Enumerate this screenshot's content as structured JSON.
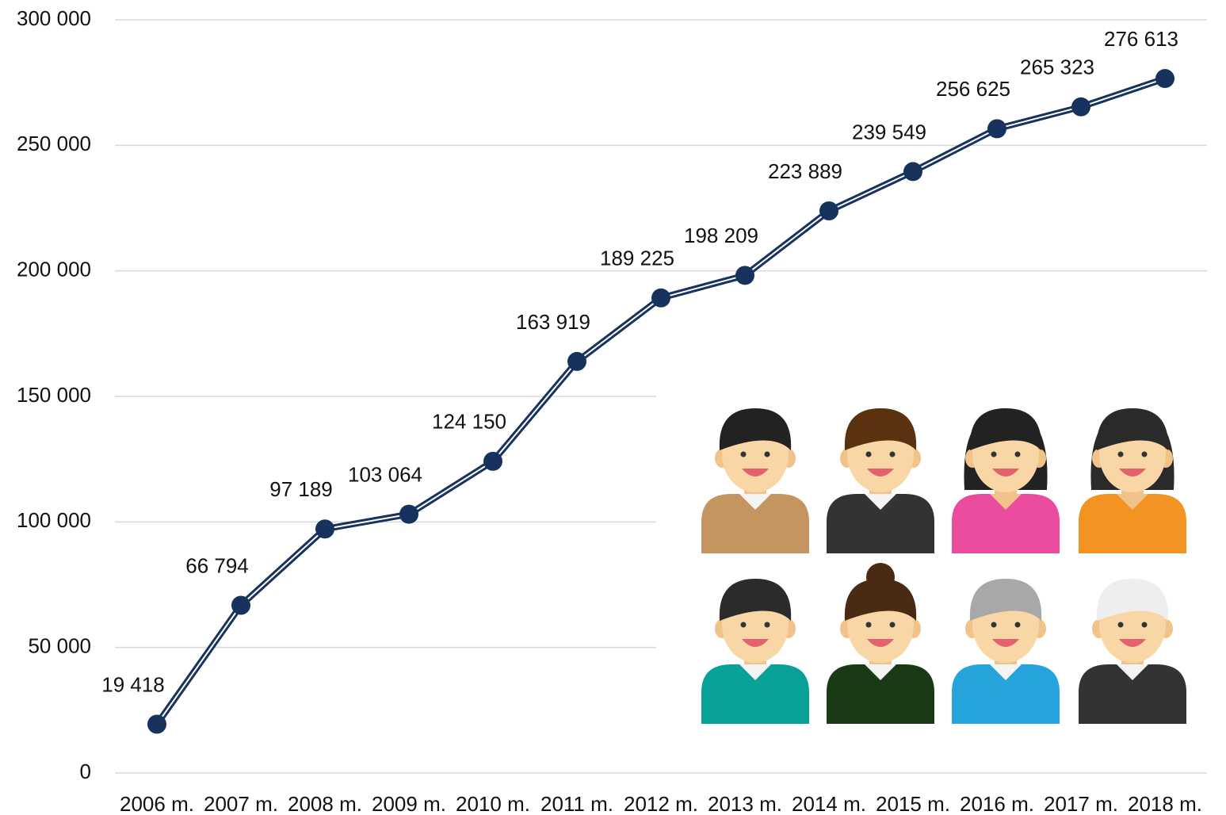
{
  "chart_data": {
    "type": "line",
    "categories": [
      "2006 m.",
      "2007 m.",
      "2008 m.",
      "2009 m.",
      "2010 m.",
      "2011 m.",
      "2012 m.",
      "2013 m.",
      "2014 m.",
      "2015 m.",
      "2016 m.",
      "2017 m.",
      "2018 m."
    ],
    "values": [
      19418,
      66794,
      97189,
      103064,
      124150,
      163919,
      189225,
      198209,
      223889,
      239549,
      256625,
      265323,
      276613
    ],
    "value_labels": [
      "19 418",
      "66 794",
      "97 189",
      "103 064",
      "124 150",
      "163 919",
      "189 225",
      "198 209",
      "223 889",
      "239 549",
      "256 625",
      "265 323",
      "276 613"
    ],
    "color": "#17325c",
    "ylim": [
      0,
      300000
    ],
    "yticks": [
      0,
      {
        "value": 50000,
        "label": "50 000"
      },
      {
        "value": 100000,
        "label": "100 000"
      },
      {
        "value": 150000,
        "label": "150 000"
      },
      {
        "value": 200000,
        "label": "200 000"
      },
      {
        "value": 250000,
        "label": "250 000"
      },
      {
        "value": 300000,
        "label": "300 000"
      }
    ],
    "grid": true
  }
}
